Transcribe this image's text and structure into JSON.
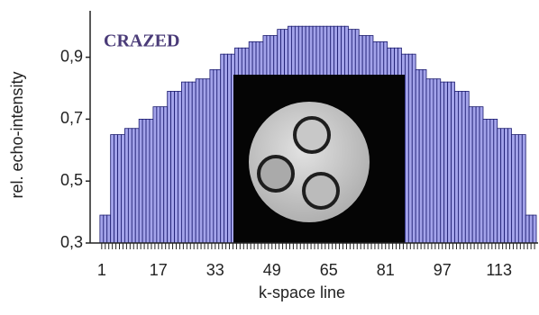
{
  "chart_data": {
    "type": "bar",
    "title": "CRAZED",
    "xlabel": "k-space line",
    "ylabel": "rel. echo-intensity",
    "color": "#a3a3ea",
    "edgecolor": "#1a1a6e",
    "x": [
      1,
      2,
      3,
      4,
      5,
      6,
      7,
      8,
      9,
      10,
      11,
      12,
      13,
      14,
      15,
      16,
      17,
      18,
      19,
      20,
      21,
      22,
      23,
      24,
      25,
      26,
      27,
      28,
      29,
      30,
      31,
      32,
      33,
      34,
      35,
      36,
      37,
      38,
      39,
      40,
      41,
      42,
      43,
      44,
      45,
      46,
      47,
      48,
      49,
      50,
      51,
      52,
      53,
      54,
      55,
      56,
      57,
      58,
      59,
      60,
      61,
      62,
      63,
      64,
      65,
      66,
      67,
      68,
      69,
      70,
      71,
      72,
      73,
      74,
      75,
      76,
      77,
      78,
      79,
      80,
      81,
      82,
      83,
      84,
      85,
      86,
      87,
      88,
      89,
      90,
      91,
      92,
      93,
      94,
      95,
      96,
      97,
      98,
      99,
      100,
      101,
      102,
      103,
      104,
      105,
      106,
      107,
      108,
      109,
      110,
      111,
      112,
      113,
      114,
      115,
      116,
      117,
      118,
      119,
      120,
      121,
      122,
      123
    ],
    "values": [
      0.39,
      0.39,
      0.39,
      0.65,
      0.65,
      0.65,
      0.65,
      0.67,
      0.67,
      0.67,
      0.67,
      0.7,
      0.7,
      0.7,
      0.7,
      0.74,
      0.74,
      0.74,
      0.74,
      0.79,
      0.79,
      0.79,
      0.79,
      0.82,
      0.82,
      0.82,
      0.82,
      0.83,
      0.83,
      0.83,
      0.83,
      0.86,
      0.86,
      0.86,
      0.91,
      0.91,
      0.91,
      0.91,
      0.93,
      0.93,
      0.93,
      0.93,
      0.95,
      0.95,
      0.95,
      0.95,
      0.97,
      0.97,
      0.97,
      0.97,
      0.99,
      0.99,
      0.99,
      1,
      1,
      1,
      1,
      1,
      1,
      1,
      1,
      1,
      1,
      1,
      1,
      1,
      1,
      1,
      1,
      1,
      0.99,
      0.99,
      0.99,
      0.97,
      0.97,
      0.97,
      0.97,
      0.95,
      0.95,
      0.95,
      0.95,
      0.93,
      0.93,
      0.93,
      0.93,
      0.91,
      0.91,
      0.91,
      0.91,
      0.86,
      0.86,
      0.86,
      0.83,
      0.83,
      0.83,
      0.83,
      0.82,
      0.82,
      0.82,
      0.82,
      0.79,
      0.79,
      0.79,
      0.79,
      0.74,
      0.74,
      0.74,
      0.74,
      0.7,
      0.7,
      0.7,
      0.7,
      0.67,
      0.67,
      0.67,
      0.67,
      0.65,
      0.65,
      0.65,
      0.65,
      0.39,
      0.39,
      0.39
    ],
    "xlim": [
      -1.5,
      124
    ],
    "ylim": [
      0.3,
      1.05
    ],
    "xticks": [
      1,
      17,
      33,
      49,
      65,
      81,
      97,
      113
    ],
    "yticks": [
      {
        "value": 0.3,
        "label": "0,3"
      },
      {
        "value": 0.5,
        "label": "0,5"
      },
      {
        "value": 0.7,
        "label": "0,7"
      },
      {
        "value": 0.9,
        "label": "0,9"
      }
    ]
  }
}
